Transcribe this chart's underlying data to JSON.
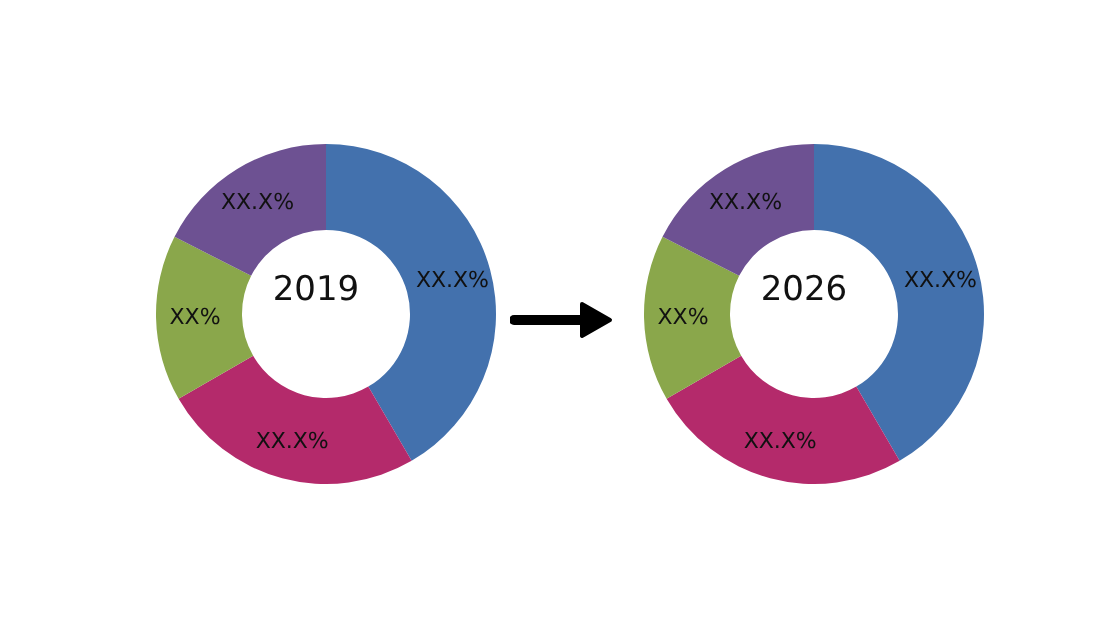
{
  "chart_data": [
    {
      "type": "donut",
      "title": "2019",
      "categories": [
        null,
        null,
        null,
        null
      ],
      "values": [
        41.6,
        25.1,
        15.8,
        17.5
      ],
      "colors": [
        "#4371ad",
        "#b42a6b",
        "#8aa74b",
        "#6d5192"
      ],
      "value_labels": [
        "XX.X%",
        "XX.X%",
        "XX%",
        "XX.X%"
      ]
    },
    {
      "type": "donut",
      "title": "2026",
      "categories": [
        null,
        null,
        null,
        null
      ],
      "values": [
        41.6,
        25.1,
        15.8,
        17.5
      ],
      "colors": [
        "#4371ad",
        "#b42a6b",
        "#8aa74b",
        "#6d5192"
      ],
      "value_labels": [
        "XX.X%",
        "XX.X%",
        "XX%",
        "XX.X%"
      ]
    }
  ]
}
